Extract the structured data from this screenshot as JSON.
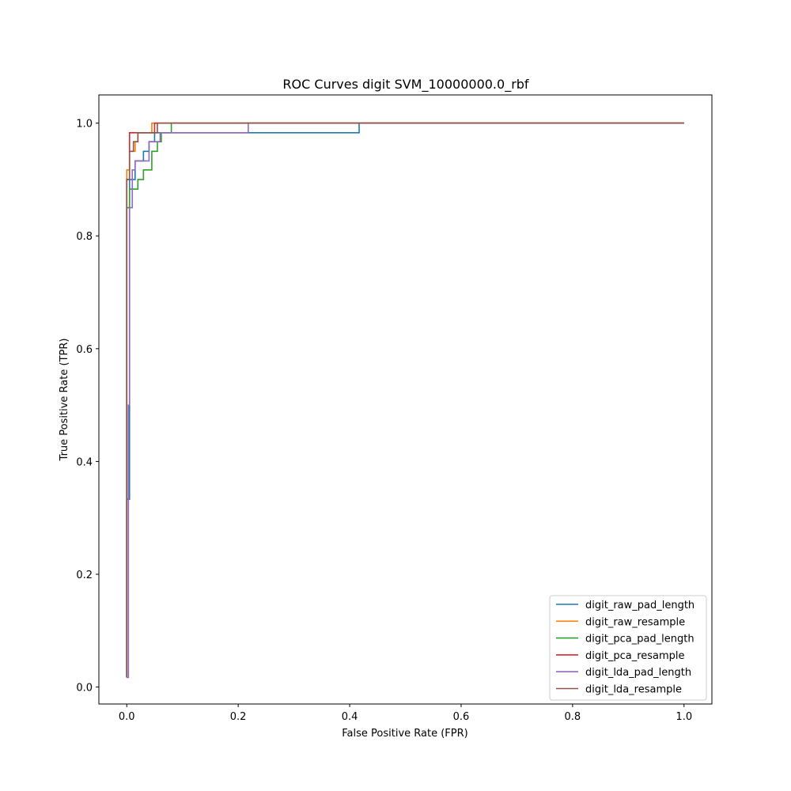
{
  "chart_data": {
    "type": "line",
    "title": "ROC Curves digit  SVM_10000000.0_rbf",
    "xlabel": "False Positive Rate (FPR)",
    "ylabel": "True Positive Rate (TPR)",
    "xlim": [
      -0.05,
      1.05
    ],
    "ylim": [
      -0.03,
      1.05
    ],
    "xticks": [
      "0.0",
      "0.2",
      "0.4",
      "0.6",
      "0.8",
      "1.0"
    ],
    "yticks": [
      "0.0",
      "0.2",
      "0.4",
      "0.6",
      "0.8",
      "1.0"
    ],
    "grid": false,
    "legend_position": "lower-right",
    "series": [
      {
        "name": "digit_raw_pad_length",
        "color": "#1f77b4",
        "points": [
          [
            0,
            0.017
          ],
          [
            0,
            0.333
          ],
          [
            0.005,
            0.333
          ],
          [
            0.005,
            0.5
          ],
          [
            0.005,
            0.9
          ],
          [
            0.015,
            0.9
          ],
          [
            0.015,
            0.933
          ],
          [
            0.03,
            0.933
          ],
          [
            0.03,
            0.95
          ],
          [
            0.04,
            0.95
          ],
          [
            0.04,
            0.967
          ],
          [
            0.05,
            0.967
          ],
          [
            0.05,
            0.983
          ],
          [
            0.417,
            0.983
          ],
          [
            0.417,
            1.0
          ],
          [
            1.0,
            1.0
          ]
        ]
      },
      {
        "name": "digit_raw_resample",
        "color": "#ff7f0e",
        "points": [
          [
            0,
            0.017
          ],
          [
            0,
            0.917
          ],
          [
            0.005,
            0.917
          ],
          [
            0.005,
            0.95
          ],
          [
            0.015,
            0.95
          ],
          [
            0.015,
            0.967
          ],
          [
            0.02,
            0.967
          ],
          [
            0.02,
            0.983
          ],
          [
            0.045,
            0.983
          ],
          [
            0.045,
            1.0
          ],
          [
            1.0,
            1.0
          ]
        ]
      },
      {
        "name": "digit_pca_pad_length",
        "color": "#2ca02c",
        "points": [
          [
            0,
            0.017
          ],
          [
            0,
            0.85
          ],
          [
            0.005,
            0.85
          ],
          [
            0.005,
            0.883
          ],
          [
            0.02,
            0.883
          ],
          [
            0.02,
            0.9
          ],
          [
            0.03,
            0.9
          ],
          [
            0.03,
            0.917
          ],
          [
            0.045,
            0.917
          ],
          [
            0.045,
            0.95
          ],
          [
            0.055,
            0.95
          ],
          [
            0.055,
            0.967
          ],
          [
            0.062,
            0.967
          ],
          [
            0.062,
            0.983
          ],
          [
            0.08,
            0.983
          ],
          [
            0.08,
            1.0
          ],
          [
            1.0,
            1.0
          ]
        ]
      },
      {
        "name": "digit_pca_resample",
        "color": "#d62728",
        "points": [
          [
            0,
            0.017
          ],
          [
            0,
            0.9
          ],
          [
            0.005,
            0.9
          ],
          [
            0.005,
            0.983
          ],
          [
            0.05,
            0.983
          ],
          [
            0.05,
            1.0
          ],
          [
            1.0,
            1.0
          ]
        ]
      },
      {
        "name": "digit_lda_pad_length",
        "color": "#9467bd",
        "points": [
          [
            0,
            0.017
          ],
          [
            0.003,
            0.017
          ],
          [
            0.003,
            0.5
          ],
          [
            0.005,
            0.5
          ],
          [
            0.005,
            0.85
          ],
          [
            0.01,
            0.85
          ],
          [
            0.01,
            0.917
          ],
          [
            0.015,
            0.917
          ],
          [
            0.015,
            0.933
          ],
          [
            0.04,
            0.933
          ],
          [
            0.04,
            0.967
          ],
          [
            0.06,
            0.967
          ],
          [
            0.06,
            0.983
          ],
          [
            0.218,
            0.983
          ],
          [
            0.218,
            1.0
          ],
          [
            1.0,
            1.0
          ]
        ]
      },
      {
        "name": "digit_lda_resample",
        "color": "#8c564b",
        "points": [
          [
            0,
            0.017
          ],
          [
            0,
            0.9
          ],
          [
            0.005,
            0.9
          ],
          [
            0.005,
            0.95
          ],
          [
            0.012,
            0.95
          ],
          [
            0.012,
            0.967
          ],
          [
            0.02,
            0.967
          ],
          [
            0.02,
            0.983
          ],
          [
            0.055,
            0.983
          ],
          [
            0.055,
            1.0
          ],
          [
            1.0,
            1.0
          ]
        ]
      }
    ]
  }
}
